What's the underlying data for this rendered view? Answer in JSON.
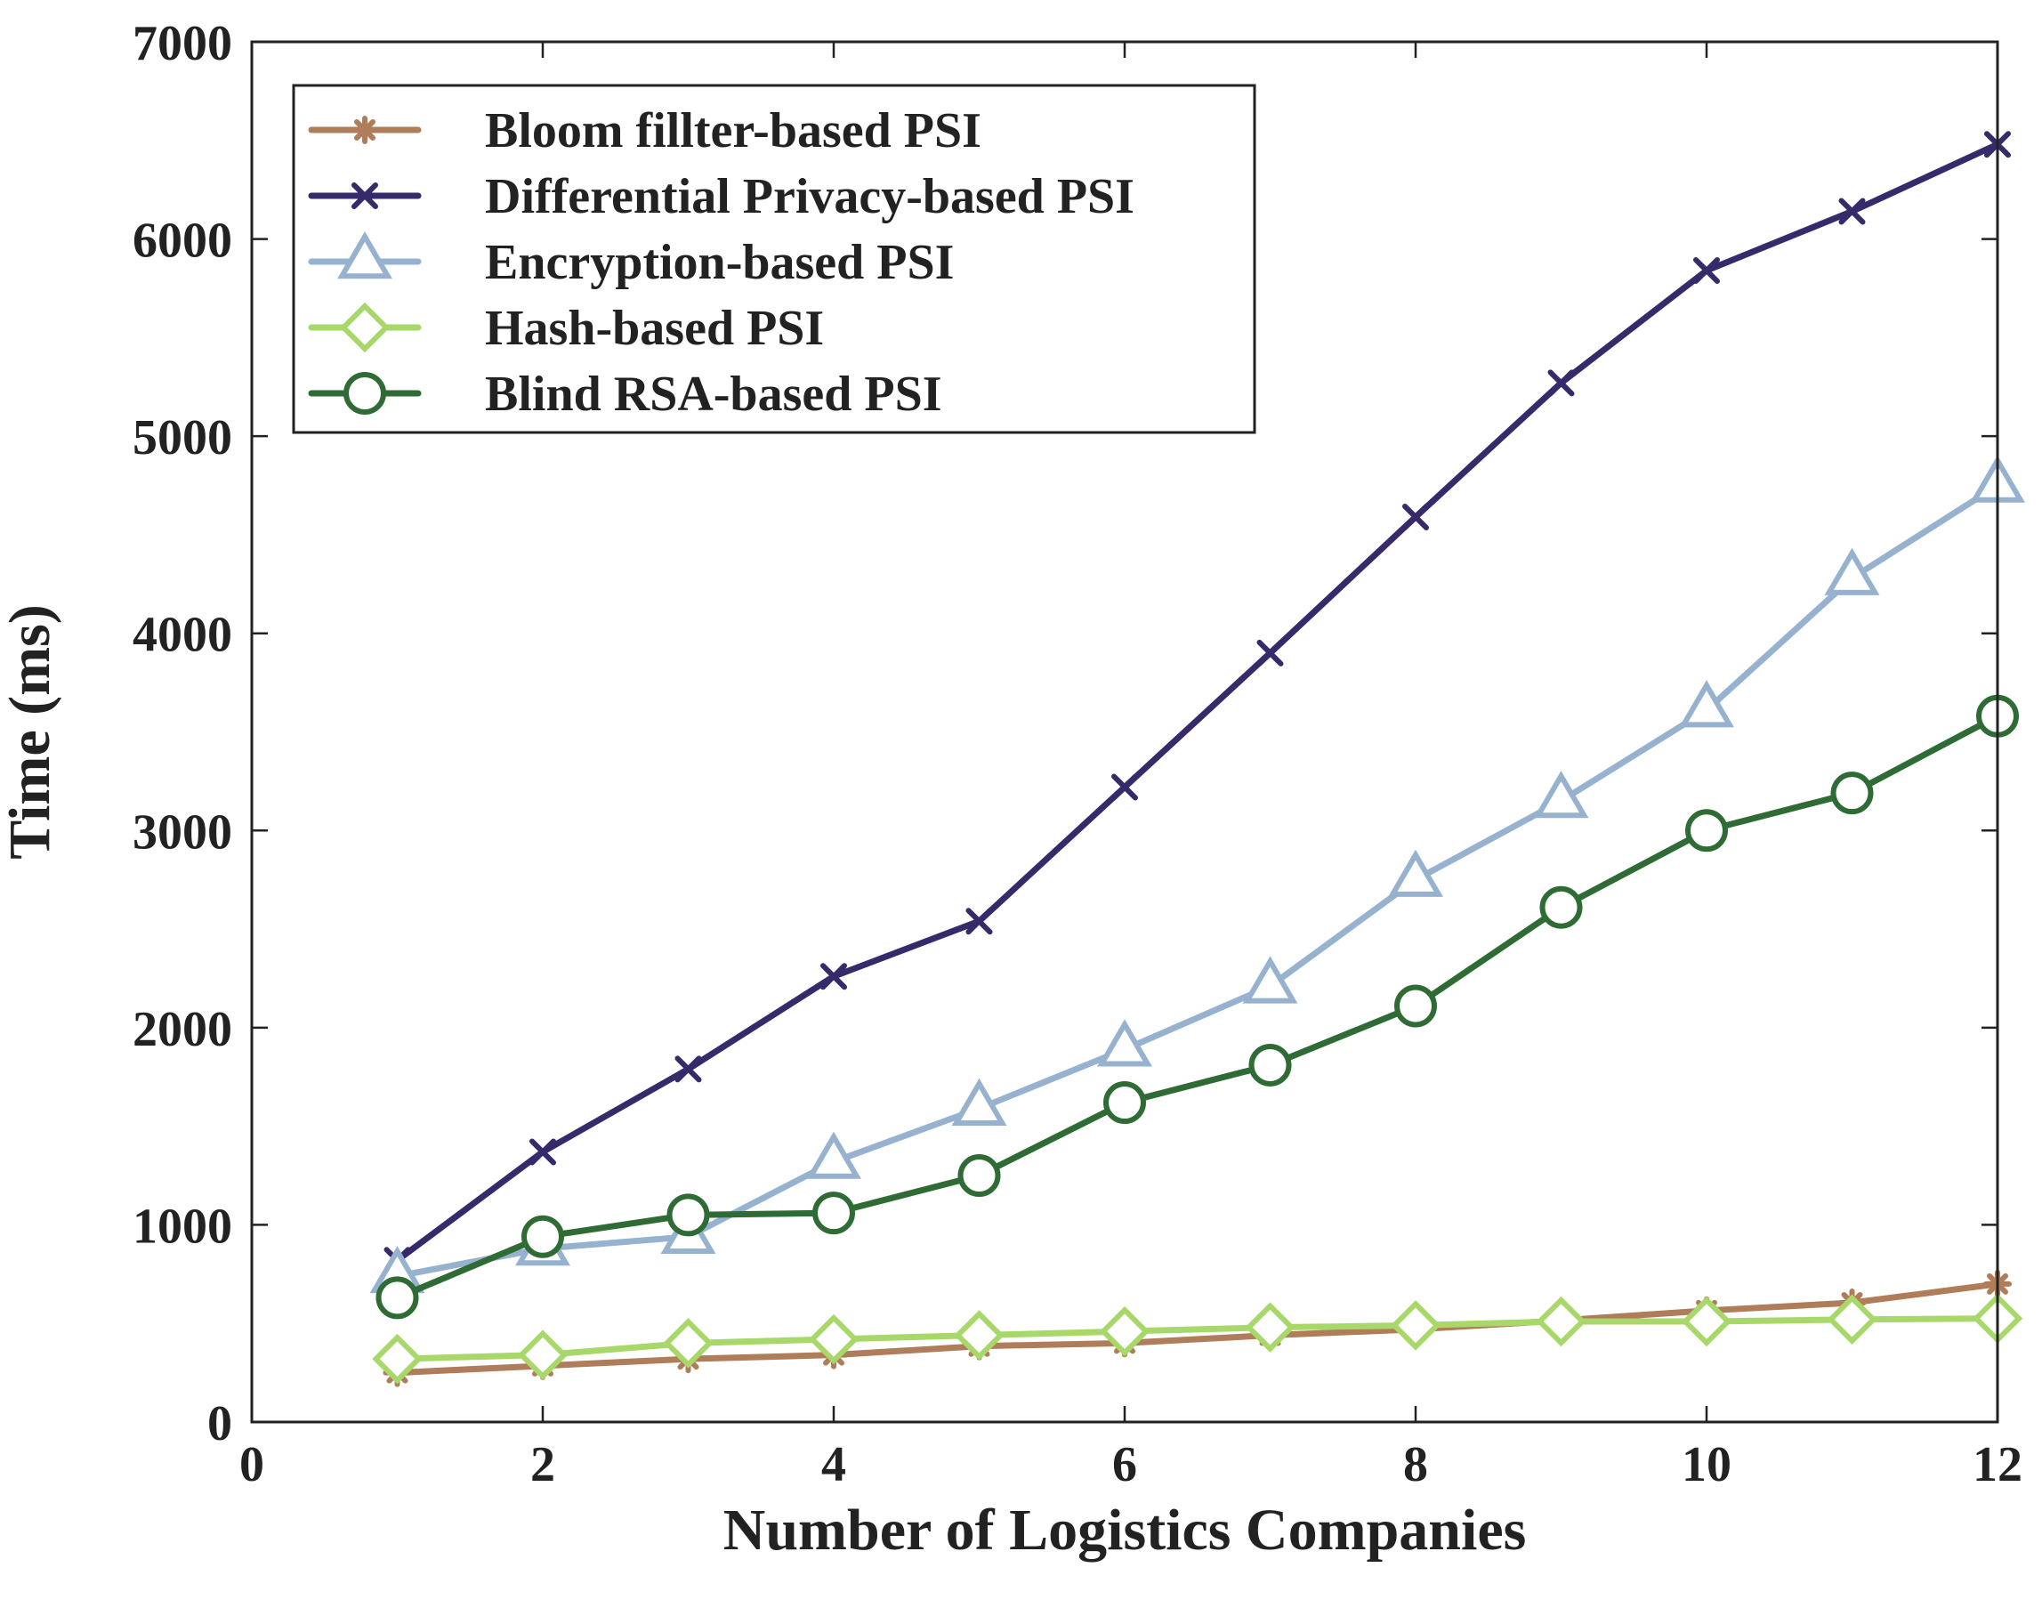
{
  "chart_data": {
    "type": "line",
    "title": "",
    "xlabel": "Number of Logistics Companies",
    "ylabel": "Time (ms)",
    "xlim": [
      0,
      12
    ],
    "ylim": [
      0,
      7000
    ],
    "xticks": [
      0,
      2,
      4,
      6,
      8,
      10,
      12
    ],
    "yticks": [
      0,
      1000,
      2000,
      3000,
      4000,
      5000,
      6000,
      7000
    ],
    "grid": false,
    "legend_position": "top-left",
    "x": [
      1,
      2,
      3,
      4,
      5,
      6,
      7,
      8,
      9,
      10,
      11,
      12
    ],
    "series": [
      {
        "name": "Bloom fillter-based PSI",
        "marker": "asterisk",
        "color": "#B07D5B",
        "values": [
          250,
          285,
          320,
          340,
          385,
          400,
          440,
          470,
          515,
          565,
          605,
          700
        ]
      },
      {
        "name": "Differential Privacy-based PSI",
        "marker": "x",
        "color": "#362A6B",
        "values": [
          820,
          1370,
          1790,
          2260,
          2540,
          3220,
          3900,
          4590,
          5270,
          5840,
          6140,
          6480
        ]
      },
      {
        "name": "Encryption-based PSI",
        "marker": "triangle",
        "color": "#97B2CF",
        "values": [
          740,
          880,
          940,
          1320,
          1590,
          1890,
          2210,
          2750,
          3150,
          3610,
          4280,
          4750
        ]
      },
      {
        "name": "Hash-based PSI",
        "marker": "diamond",
        "color": "#A9D86A",
        "values": [
          320,
          340,
          400,
          420,
          440,
          460,
          480,
          490,
          510,
          510,
          520,
          525
        ]
      },
      {
        "name": "Blind RSA-based PSI",
        "marker": "circle",
        "color": "#2F6B34",
        "values": [
          630,
          940,
          1050,
          1060,
          1250,
          1620,
          1810,
          2110,
          2610,
          3000,
          3190,
          3580
        ]
      }
    ]
  }
}
